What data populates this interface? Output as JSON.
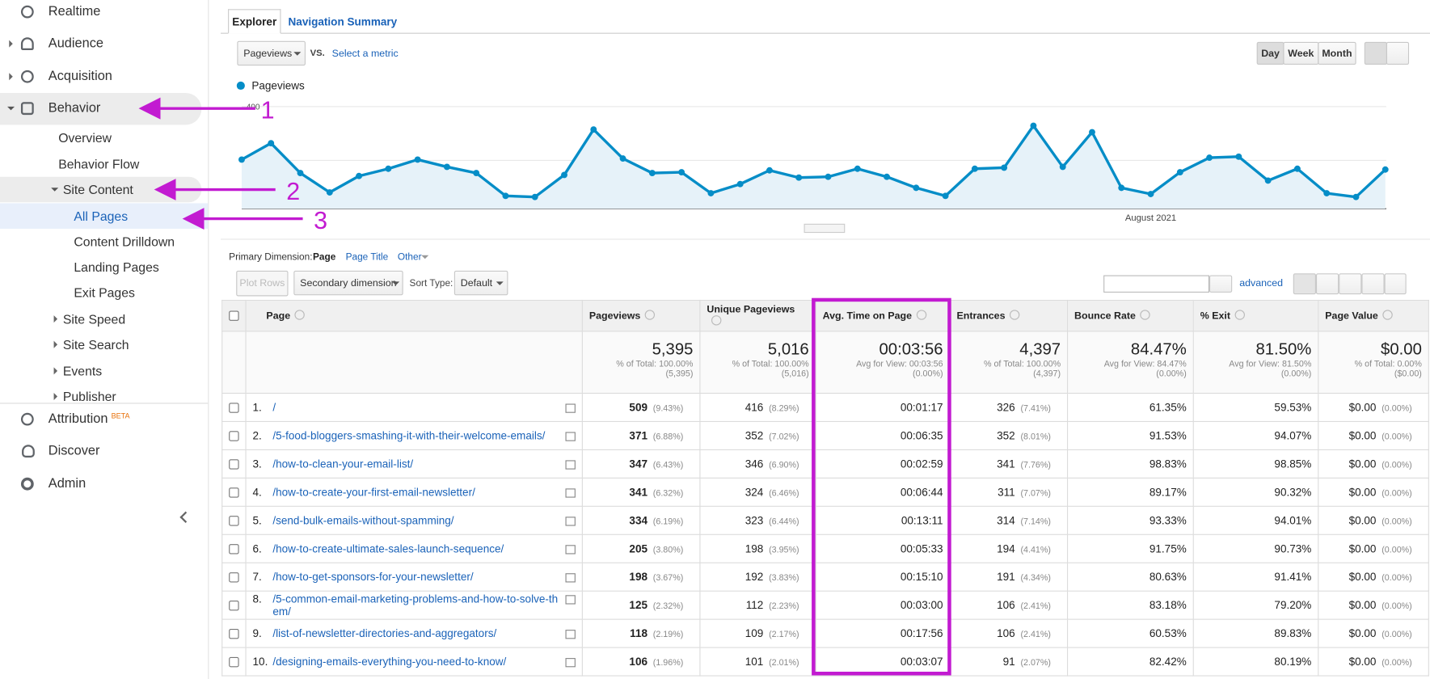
{
  "sidebar": {
    "realtime": "Realtime",
    "audience": "Audience",
    "acquisition": "Acquisition",
    "behavior": "Behavior",
    "overview": "Overview",
    "behavior_flow": "Behavior Flow",
    "site_content": "Site Content",
    "all_pages": "All Pages",
    "content_drilldown": "Content Drilldown",
    "landing_pages": "Landing Pages",
    "exit_pages": "Exit Pages",
    "site_speed": "Site Speed",
    "site_search": "Site Search",
    "events": "Events",
    "publisher": "Publisher",
    "attribution": "Attribution",
    "beta": "BETA",
    "discover": "Discover",
    "admin": "Admin"
  },
  "annotations": [
    "1",
    "2",
    "3"
  ],
  "tabs": [
    "Explorer",
    "Navigation Summary"
  ],
  "controls": {
    "metric": "Pageviews",
    "vs": "VS.",
    "select_metric": "Select a metric",
    "periods": [
      "Day",
      "Week",
      "Month"
    ]
  },
  "chart_data": {
    "type": "line",
    "categories": [
      null,
      null,
      null,
      null,
      null,
      null,
      null,
      null,
      null,
      null,
      null,
      null,
      null,
      null,
      null,
      null,
      null,
      null,
      null,
      null,
      null,
      null,
      null,
      null,
      null,
      null,
      null,
      null,
      null,
      null,
      null,
      "August 2021",
      null,
      null,
      null,
      null,
      null,
      null,
      null,
      null
    ],
    "series": [
      {
        "name": "Pageviews",
        "color": "#058dc7",
        "values": [
          203,
          264,
          153,
          81,
          142,
          169,
          203,
          176,
          153,
          68,
          64,
          146,
          315,
          207,
          153,
          156,
          78,
          112,
          163,
          136,
          139,
          169,
          139,
          98,
          68,
          169,
          173,
          329,
          176,
          305,
          98,
          75,
          156,
          210,
          214,
          125,
          169,
          78,
          64,
          166
        ]
      }
    ],
    "ylim": [
      0,
      400
    ],
    "yticks": [
      200,
      400
    ],
    "grid": true
  },
  "dimension": {
    "label": "Primary Dimension:",
    "options": [
      "Page",
      "Page Title",
      "Other"
    ]
  },
  "toolbar": {
    "plot_rows": "Plot Rows",
    "secondary": "Secondary dimension",
    "sort_label": "Sort Type:",
    "sort_value": "Default",
    "advanced": "advanced"
  },
  "table": {
    "headers": [
      "Page",
      "Pageviews",
      "Unique Pageviews",
      "Avg. Time on Page",
      "Entrances",
      "Bounce Rate",
      "% Exit",
      "Page Value"
    ],
    "totals": [
      [
        "5,395",
        "% of Total: 100.00%",
        "(5,395)"
      ],
      [
        "5,016",
        "% of Total: 100.00%",
        "(5,016)"
      ],
      [
        "00:03:56",
        "Avg for View: 00:03:56",
        "(0.00%)"
      ],
      [
        "4,397",
        "% of Total: 100.00%",
        "(4,397)"
      ],
      [
        "84.47%",
        "Avg for View: 84.47%",
        "(0.00%)"
      ],
      [
        "81.50%",
        "Avg for View: 81.50%",
        "(0.00%)"
      ],
      [
        "$0.00",
        "% of Total: 0.00%",
        "($0.00)"
      ]
    ],
    "rows": [
      [
        "1.",
        "/",
        "509",
        "(9.43%)",
        "416",
        "(8.29%)",
        "00:01:17",
        "326",
        "(7.41%)",
        "61.35%",
        "59.53%",
        "$0.00",
        "(0.00%)"
      ],
      [
        "2.",
        "/5-food-bloggers-smashing-it-with-their-welcome-emails/",
        "371",
        "(6.88%)",
        "352",
        "(7.02%)",
        "00:06:35",
        "352",
        "(8.01%)",
        "91.53%",
        "94.07%",
        "$0.00",
        "(0.00%)"
      ],
      [
        "3.",
        "/how-to-clean-your-email-list/",
        "347",
        "(6.43%)",
        "346",
        "(6.90%)",
        "00:02:59",
        "341",
        "(7.76%)",
        "98.83%",
        "98.85%",
        "$0.00",
        "(0.00%)"
      ],
      [
        "4.",
        "/how-to-create-your-first-email-newsletter/",
        "341",
        "(6.32%)",
        "324",
        "(6.46%)",
        "00:06:44",
        "311",
        "(7.07%)",
        "89.17%",
        "90.32%",
        "$0.00",
        "(0.00%)"
      ],
      [
        "5.",
        "/send-bulk-emails-without-spamming/",
        "334",
        "(6.19%)",
        "323",
        "(6.44%)",
        "00:13:11",
        "314",
        "(7.14%)",
        "93.33%",
        "94.01%",
        "$0.00",
        "(0.00%)"
      ],
      [
        "6.",
        "/how-to-create-ultimate-sales-launch-sequence/",
        "205",
        "(3.80%)",
        "198",
        "(3.95%)",
        "00:05:33",
        "194",
        "(4.41%)",
        "91.75%",
        "90.73%",
        "$0.00",
        "(0.00%)"
      ],
      [
        "7.",
        "/how-to-get-sponsors-for-your-newsletter/",
        "198",
        "(3.67%)",
        "192",
        "(3.83%)",
        "00:15:10",
        "191",
        "(4.34%)",
        "80.63%",
        "91.41%",
        "$0.00",
        "(0.00%)"
      ],
      [
        "8.",
        "/5-common-email-marketing-problems-and-how-to-solve-them/",
        "125",
        "(2.32%)",
        "112",
        "(2.23%)",
        "00:03:00",
        "106",
        "(2.41%)",
        "83.18%",
        "79.20%",
        "$0.00",
        "(0.00%)"
      ],
      [
        "9.",
        "/list-of-newsletter-directories-and-aggregators/",
        "118",
        "(2.19%)",
        "109",
        "(2.17%)",
        "00:17:56",
        "106",
        "(2.41%)",
        "60.53%",
        "89.83%",
        "$0.00",
        "(0.00%)"
      ],
      [
        "10.",
        "/designing-emails-everything-you-need-to-know/",
        "106",
        "(1.96%)",
        "101",
        "(2.01%)",
        "00:03:07",
        "91",
        "(2.07%)",
        "82.42%",
        "80.19%",
        "$0.00",
        "(0.00%)"
      ]
    ]
  }
}
